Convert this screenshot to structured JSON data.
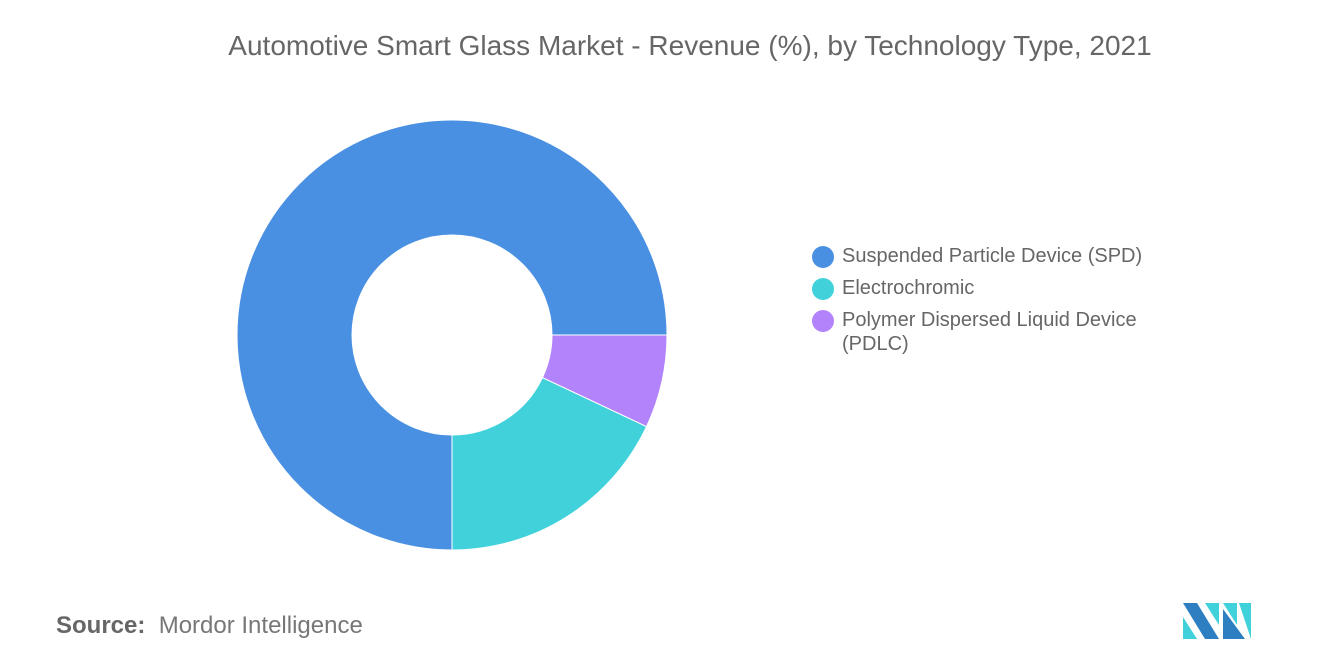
{
  "chart_data": {
    "type": "pie",
    "variant": "donut",
    "title": "Automotive Smart Glass Market - Revenue (%), by Technology Type, 2021",
    "categories": [
      "Suspended Particle Device (SPD)",
      "Electrochromic",
      "Polymer Dispersed Liquid Device (PDLC)"
    ],
    "values": [
      75,
      18,
      7
    ],
    "colors": [
      "#4a90e2",
      "#40d1db",
      "#b383fc"
    ],
    "legend_position": "right"
  },
  "source": {
    "label": "Source:",
    "text": "Mordor Intelligence"
  },
  "logo": {
    "colors": [
      "#2d7fc1",
      "#40d1db"
    ]
  }
}
